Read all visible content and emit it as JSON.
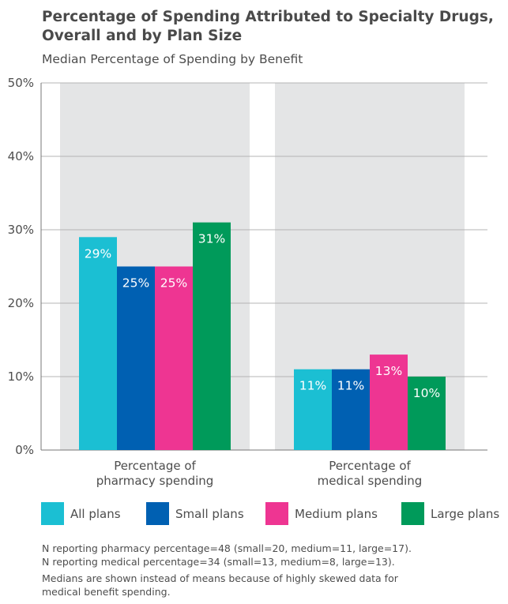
{
  "title_lines": [
    "Percentage of Spending Attributed to Specialty Drugs,",
    "Overall and by Plan Size"
  ],
  "subtitle": "Median Percentage of Spending by Benefit",
  "colors": {
    "all_plans": "#1bbfd3",
    "small_plans": "#0060b2",
    "medium_plans": "#ee3592",
    "large_plans": "#009a5a",
    "panel_bg": "#e4e5e6",
    "gridline": "#b4b4b4",
    "axis": "#777777"
  },
  "chart_data": {
    "type": "bar",
    "title": "Percentage of Spending Attributed to Specialty Drugs, Overall and by Plan Size",
    "subtitle": "Median Percentage of Spending by Benefit",
    "categories": [
      [
        "Percentage of",
        "pharmacy spending"
      ],
      [
        "Percentage of",
        "medical spending"
      ]
    ],
    "series": [
      {
        "name": "All plans",
        "values": [
          29,
          11
        ],
        "labels": [
          "29%",
          "11%"
        ],
        "color_key": "all_plans"
      },
      {
        "name": "Small plans",
        "values": [
          25,
          11
        ],
        "labels": [
          "25%",
          "11%"
        ],
        "color_key": "small_plans"
      },
      {
        "name": "Medium plans",
        "values": [
          25,
          13
        ],
        "labels": [
          "25%",
          "13%"
        ],
        "color_key": "medium_plans"
      },
      {
        "name": "Large plans",
        "values": [
          31,
          10
        ],
        "labels": [
          "31%",
          "10%"
        ],
        "color_key": "large_plans"
      }
    ],
    "ylim": [
      0,
      50
    ],
    "yticks": [
      0,
      10,
      20,
      30,
      40,
      50
    ],
    "ytick_labels": [
      "0%",
      "10%",
      "20%",
      "30%",
      "40%",
      "50%"
    ],
    "grid": true,
    "legend_position": "bottom"
  },
  "legend": [
    {
      "label": "All plans",
      "color_key": "all_plans"
    },
    {
      "label": "Small plans",
      "color_key": "small_plans"
    },
    {
      "label": "Medium plans",
      "color_key": "medium_plans"
    },
    {
      "label": "Large plans",
      "color_key": "large_plans"
    }
  ],
  "notes": [
    "N reporting pharmacy percentage=48 (small=20, medium=11, large=17).",
    "N reporting medical percentage=34 (small=13, medium=8, large=13).",
    "Medians are shown instead of means because of highly skewed data for",
    "medical benefit spending."
  ]
}
